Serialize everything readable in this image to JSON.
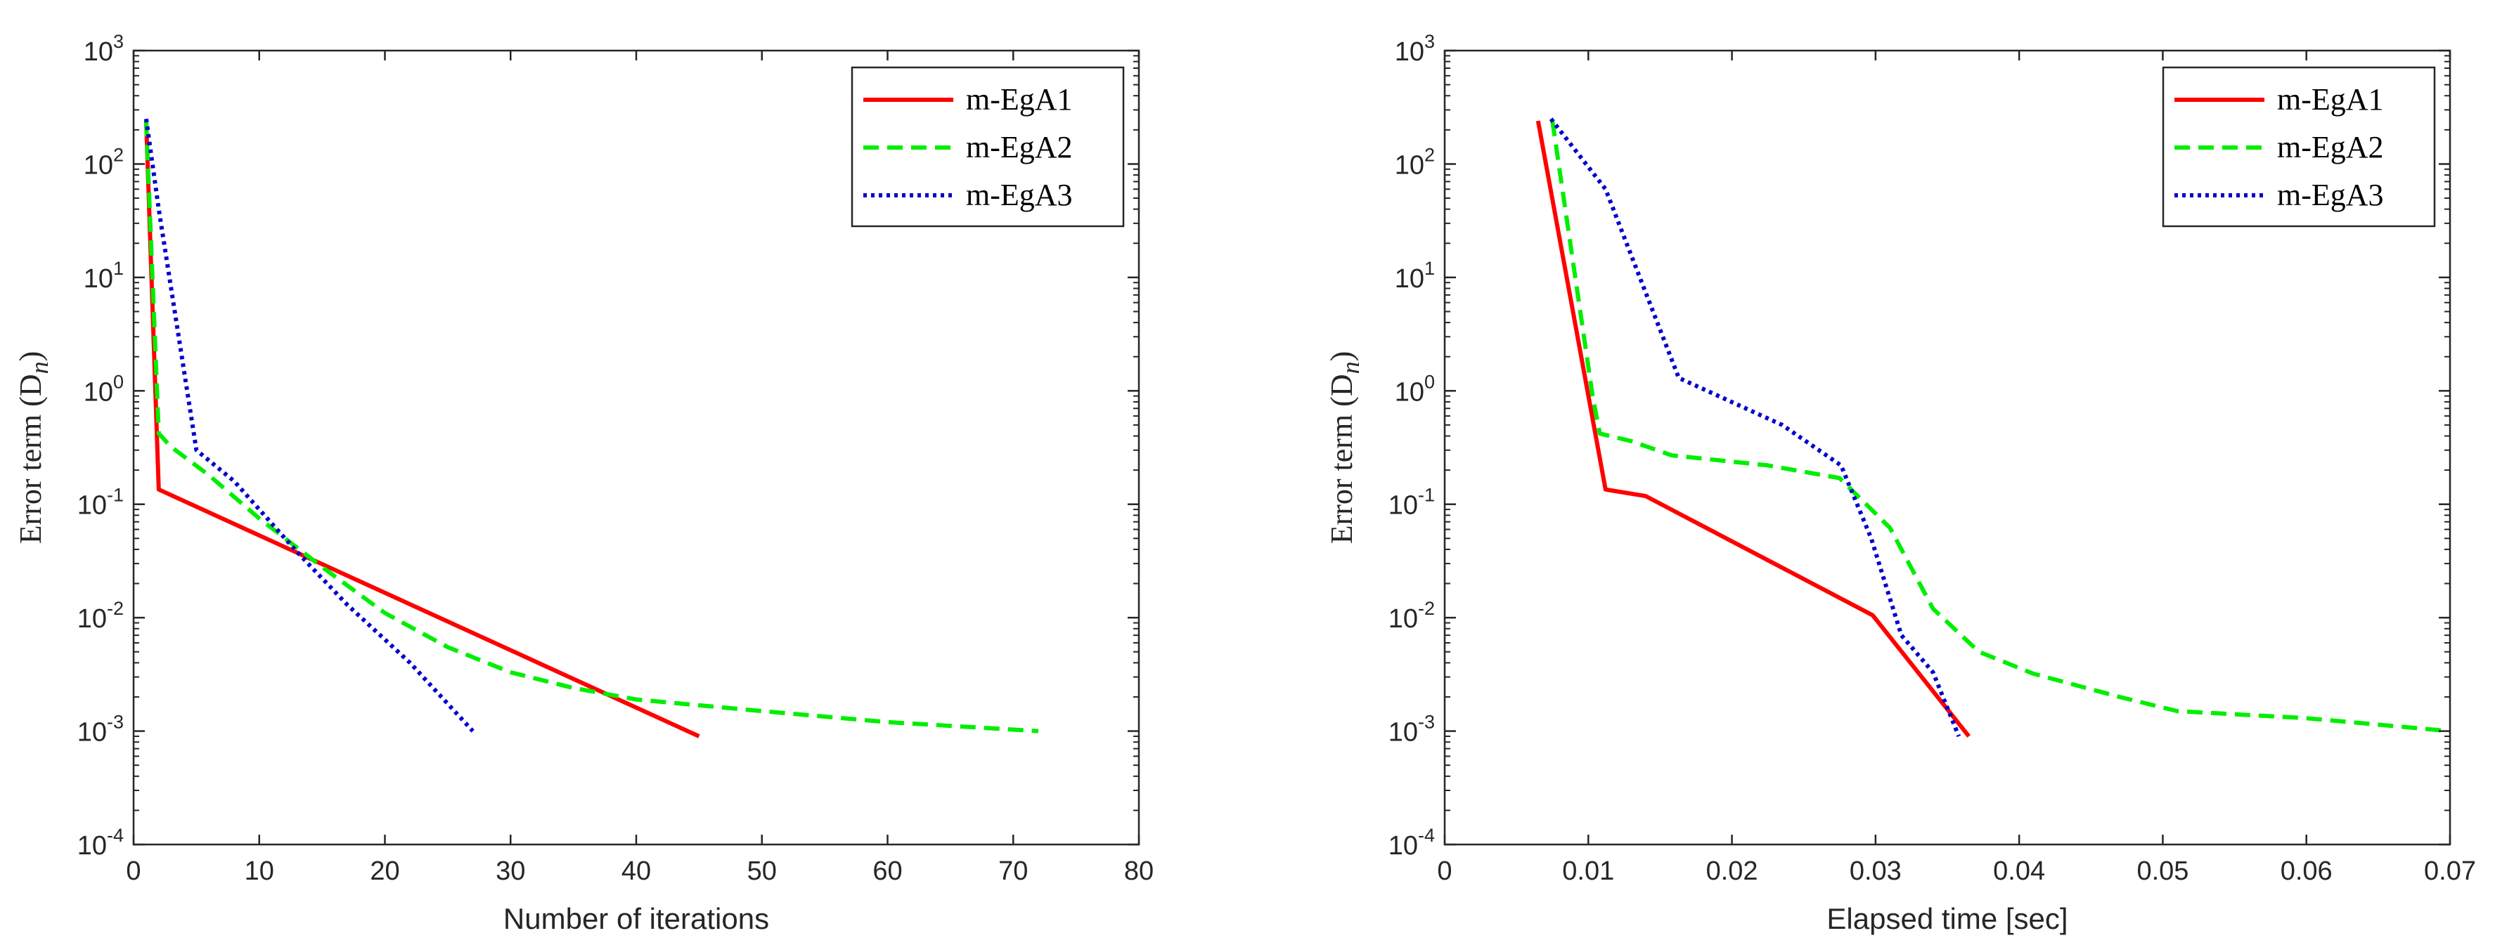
{
  "colors": {
    "m-EgA1": "#ff0000",
    "m-EgA2": "#00ee00",
    "m-EgA3": "#0000cc",
    "axis": "#262626"
  },
  "chart_data": [
    {
      "type": "line",
      "title": "",
      "xlabel": "Number of iterations",
      "ylabel": "Error term (D",
      "ylabel_sub": "n",
      "ylabel_close": ")",
      "yscale": "log",
      "xlim": [
        0,
        80
      ],
      "ylim": [
        0.0001,
        1000
      ],
      "xticks": [
        0,
        10,
        20,
        30,
        40,
        50,
        60,
        70,
        80
      ],
      "yticks": [
        {
          "value": 0.0001,
          "base": "10",
          "exp": "-4"
        },
        {
          "value": 0.001,
          "base": "10",
          "exp": "-3"
        },
        {
          "value": 0.01,
          "base": "10",
          "exp": "-2"
        },
        {
          "value": 0.1,
          "base": "10",
          "exp": "-1"
        },
        {
          "value": 1,
          "base": "10",
          "exp": "0"
        },
        {
          "value": 10,
          "base": "10",
          "exp": "1"
        },
        {
          "value": 100,
          "base": "10",
          "exp": "2"
        },
        {
          "value": 1000,
          "base": "10",
          "exp": "3"
        }
      ],
      "legend_position": "top-right",
      "series": [
        {
          "name": "m-EgA1",
          "style": "solid",
          "x": [
            1,
            2,
            45
          ],
          "y": [
            240,
            0.135,
            0.0009
          ]
        },
        {
          "name": "m-EgA2",
          "style": "dashed",
          "x": [
            1,
            2,
            3,
            6,
            10,
            15,
            20,
            25,
            30,
            35,
            40,
            50,
            60,
            72
          ],
          "y": [
            240,
            0.42,
            0.32,
            0.18,
            0.075,
            0.028,
            0.011,
            0.0055,
            0.0033,
            0.0024,
            0.0019,
            0.0015,
            0.0012,
            0.001
          ]
        },
        {
          "name": "m-EgA3",
          "style": "dotted",
          "x": [
            1,
            2,
            5,
            8,
            13,
            17,
            22,
            27
          ],
          "y": [
            250,
            40,
            0.3,
            0.16,
            0.038,
            0.013,
            0.004,
            0.001
          ]
        }
      ]
    },
    {
      "type": "line",
      "title": "",
      "xlabel": "Elapsed time [sec]",
      "ylabel": "Error term (D",
      "ylabel_sub": "n",
      "ylabel_close": ")",
      "yscale": "log",
      "xlim": [
        0,
        0.07
      ],
      "ylim": [
        0.0001,
        1000
      ],
      "xticks": [
        0,
        0.01,
        0.02,
        0.03,
        0.04,
        0.05,
        0.06,
        0.07
      ],
      "yticks": [
        {
          "value": 0.0001,
          "base": "10",
          "exp": "-4"
        },
        {
          "value": 0.001,
          "base": "10",
          "exp": "-3"
        },
        {
          "value": 0.01,
          "base": "10",
          "exp": "-2"
        },
        {
          "value": 0.1,
          "base": "10",
          "exp": "-1"
        },
        {
          "value": 1,
          "base": "10",
          "exp": "0"
        },
        {
          "value": 10,
          "base": "10",
          "exp": "1"
        },
        {
          "value": 100,
          "base": "10",
          "exp": "2"
        },
        {
          "value": 1000,
          "base": "10",
          "exp": "3"
        }
      ],
      "legend_position": "top-right",
      "series": [
        {
          "name": "m-EgA1",
          "style": "solid",
          "x": [
            0.0065,
            0.0112,
            0.014,
            0.0298,
            0.0365
          ],
          "y": [
            240,
            0.135,
            0.118,
            0.0105,
            0.0009
          ]
        },
        {
          "name": "m-EgA2",
          "style": "dashed",
          "x": [
            0.0075,
            0.009,
            0.0103,
            0.0108,
            0.013,
            0.0158,
            0.0225,
            0.0275,
            0.031,
            0.034,
            0.0372,
            0.041,
            0.047,
            0.051,
            0.06,
            0.07
          ],
          "y": [
            240,
            12,
            0.9,
            0.42,
            0.36,
            0.27,
            0.22,
            0.17,
            0.062,
            0.012,
            0.005,
            0.0032,
            0.002,
            0.0015,
            0.0013,
            0.001
          ]
        },
        {
          "name": "m-EgA3",
          "style": "dotted",
          "x": [
            0.0074,
            0.0112,
            0.0163,
            0.0235,
            0.0276,
            0.0297,
            0.0318,
            0.034,
            0.0358
          ],
          "y": [
            250,
            60,
            1.3,
            0.5,
            0.22,
            0.05,
            0.007,
            0.0033,
            0.0009
          ]
        }
      ]
    }
  ]
}
